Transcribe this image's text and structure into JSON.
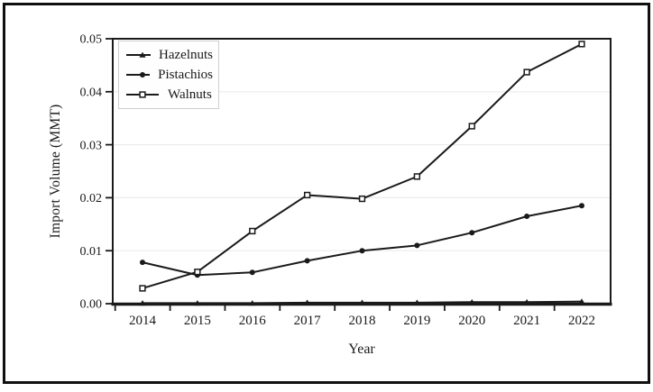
{
  "figure": {
    "kind": "framed statistical line chart",
    "frame_note": "white figure with thin black outer border"
  },
  "colors": {
    "line": "#1a1a1a",
    "grid": "#ececec",
    "legend_border": "#cfcfcf",
    "frame": "#101010",
    "text": "#1a1a1a",
    "background": "#ffffff"
  },
  "chart_data": {
    "type": "line",
    "title": "",
    "xlabel": "Year",
    "ylabel": "Import Volume (MMT)",
    "categories": [
      2014,
      2015,
      2016,
      2017,
      2018,
      2019,
      2020,
      2021,
      2022
    ],
    "x_tick_labels": [
      "2014",
      "2015",
      "2016",
      "2017",
      "2018",
      "2019",
      "2020",
      "2021",
      "2022"
    ],
    "y_ticks": [
      0,
      0.01,
      0.02,
      0.03,
      0.04,
      0.05
    ],
    "y_tick_labels": [
      "0.00",
      "0.01",
      "0.02",
      "0.03",
      "0.04",
      "0.05"
    ],
    "ylim": [
      0,
      0.05
    ],
    "grid": "horizontal light-gray gridlines at 0.01 steps",
    "legend_position": "top-left inside plot",
    "series": [
      {
        "name": "Hazelnuts",
        "marker": "triangle-filled",
        "values": [
          0.0001,
          0.0001,
          0.0001,
          0.0002,
          0.0002,
          0.0002,
          0.0003,
          0.0003,
          0.0004
        ]
      },
      {
        "name": "Pistachios",
        "marker": "circle-filled",
        "values": [
          0.0078,
          0.0054,
          0.0059,
          0.0081,
          0.01,
          0.011,
          0.0134,
          0.0165,
          0.0185
        ]
      },
      {
        "name": "Walnuts",
        "marker": "square-open",
        "values": [
          0.0029,
          0.006,
          0.0137,
          0.0205,
          0.0198,
          0.024,
          0.0335,
          0.0437,
          0.049
        ]
      }
    ]
  }
}
